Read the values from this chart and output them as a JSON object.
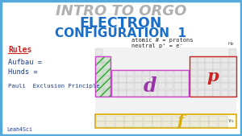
{
  "title1": "INTRO TO ORGO",
  "title2": "ELECTRON",
  "title3": "CONFIGURATION  1",
  "title1_color": "#b0b0b0",
  "title2_color": "#1a6ec7",
  "title3_color": "#1a6ec7",
  "rules_text": "Rules",
  "aufbau_text": "Aufbau =",
  "hunds_text": "Hunds =",
  "pauli_text": "Pauli  Exclusion Principle",
  "leah_text": "Leah4Sci",
  "rules_color": "#cc2222",
  "body_text_color": "#1a3a8a",
  "atomic_text": "atomic # = protons",
  "neutral_text": "neutral p⁺ = e⁻",
  "bg_color": "#ffffff",
  "border_color": "#55aadd",
  "s_box_color": "#cc44cc",
  "p_box_color": "#cc2222",
  "d_box_color": "#cc44cc",
  "f_box_color": "#ddaa00",
  "hatch_color": "#22aa22",
  "cell_color": "#e8e8e8",
  "cell_border": "#aaaaaa",
  "He_label": "He",
  "Yrs_label": "Yrs"
}
